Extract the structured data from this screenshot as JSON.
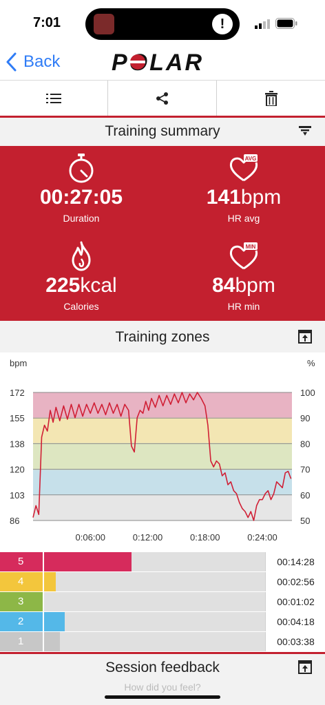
{
  "status": {
    "time": "7:01",
    "alert": "!"
  },
  "nav": {
    "back_label": "Back"
  },
  "brand": {
    "logo_text": "POLAR",
    "accent": "#c3202f"
  },
  "summary": {
    "title": "Training summary",
    "duration": {
      "value": "00:27:05",
      "label": "Duration",
      "icon": "stopwatch-icon"
    },
    "hr_avg": {
      "value": "141",
      "unit": "bpm",
      "label": "HR avg",
      "badge": "AVG"
    },
    "calories": {
      "value": "225",
      "unit": "kcal",
      "label": "Calories",
      "icon": "flame-icon"
    },
    "hr_min": {
      "value": "84",
      "unit": "bpm",
      "label": "HR min",
      "badge": "MIN"
    }
  },
  "zones_section": {
    "title": "Training zones"
  },
  "chart_data": {
    "type": "line",
    "ylabel_left": "bpm",
    "ylabel_right": "%",
    "yticks_left": [
      "172",
      "155",
      "138",
      "120",
      "103",
      "86"
    ],
    "yticks_right": [
      "100",
      "90",
      "80",
      "70",
      "60",
      "50"
    ],
    "xticks": [
      "0:06:00",
      "0:12:00",
      "0:18:00",
      "0:24:00"
    ],
    "ylim": [
      86,
      172
    ],
    "xlim_minutes": [
      0,
      27.1
    ],
    "zone_bands": [
      {
        "zone": 5,
        "from": 155,
        "to": 172,
        "color": "#e8b3c3"
      },
      {
        "zone": 4,
        "from": 138,
        "to": 155,
        "color": "#f3e6b3"
      },
      {
        "zone": 3,
        "from": 120,
        "to": 138,
        "color": "#dde6c1"
      },
      {
        "zone": 2,
        "from": 103,
        "to": 120,
        "color": "#c6e0ea"
      },
      {
        "zone": 1,
        "from": 86,
        "to": 103,
        "color": "#e6e6e6"
      }
    ],
    "series": [
      {
        "color": "#d01f35",
        "x": [
          0,
          0.3,
          0.6,
          0.9,
          1.2,
          1.5,
          1.8,
          2.1,
          2.4,
          2.8,
          3.2,
          3.6,
          4.0,
          4.4,
          4.8,
          5.2,
          5.6,
          6.0,
          6.4,
          6.8,
          7.2,
          7.6,
          8.0,
          8.4,
          8.8,
          9.2,
          9.6,
          10.0,
          10.3,
          10.6,
          10.9,
          11.2,
          11.5,
          11.8,
          12.1,
          12.4,
          12.8,
          13.2,
          13.6,
          14.0,
          14.4,
          14.8,
          15.2,
          15.6,
          16.0,
          16.4,
          16.8,
          17.2,
          17.6,
          18.0,
          18.3,
          18.6,
          18.9,
          19.2,
          19.5,
          19.8,
          20.1,
          20.4,
          20.7,
          21.0,
          21.3,
          21.6,
          21.9,
          22.2,
          22.5,
          22.8,
          23.1,
          23.4,
          23.7,
          24.0,
          24.3,
          24.6,
          24.9,
          25.2,
          25.5,
          25.8,
          26.1,
          26.4,
          26.7,
          27.0
        ],
        "y": [
          88,
          96,
          90,
          142,
          150,
          146,
          160,
          152,
          162,
          153,
          163,
          154,
          164,
          155,
          164,
          156,
          164,
          158,
          165,
          158,
          164,
          157,
          165,
          158,
          164,
          156,
          164,
          160,
          136,
          132,
          155,
          160,
          158,
          166,
          160,
          168,
          162,
          170,
          163,
          170,
          164,
          171,
          165,
          172,
          165,
          171,
          167,
          172,
          168,
          163,
          150,
          126,
          122,
          126,
          124,
          116,
          118,
          110,
          112,
          106,
          104,
          98,
          94,
          92,
          88,
          92,
          86,
          96,
          100,
          100,
          104,
          106,
          100,
          104,
          112,
          110,
          108,
          118,
          119,
          114
        ]
      }
    ]
  },
  "zones": [
    {
      "num": "5",
      "time": "00:14:28",
      "fraction": 0.497,
      "color": "#d62b5c"
    },
    {
      "num": "4",
      "time": "00:02:56",
      "fraction": 0.21,
      "color": "#f3c63c"
    },
    {
      "num": "3",
      "time": "00:01:02",
      "fraction": 0.16,
      "color": "#8db747"
    },
    {
      "num": "2",
      "time": "00:04:18",
      "fraction": 0.244,
      "color": "#54b8e8"
    },
    {
      "num": "1",
      "time": "00:03:38",
      "fraction": 0.226,
      "color": "#c7c7c7"
    }
  ],
  "feedback": {
    "title": "Session feedback",
    "peek": "How did you feel?"
  }
}
